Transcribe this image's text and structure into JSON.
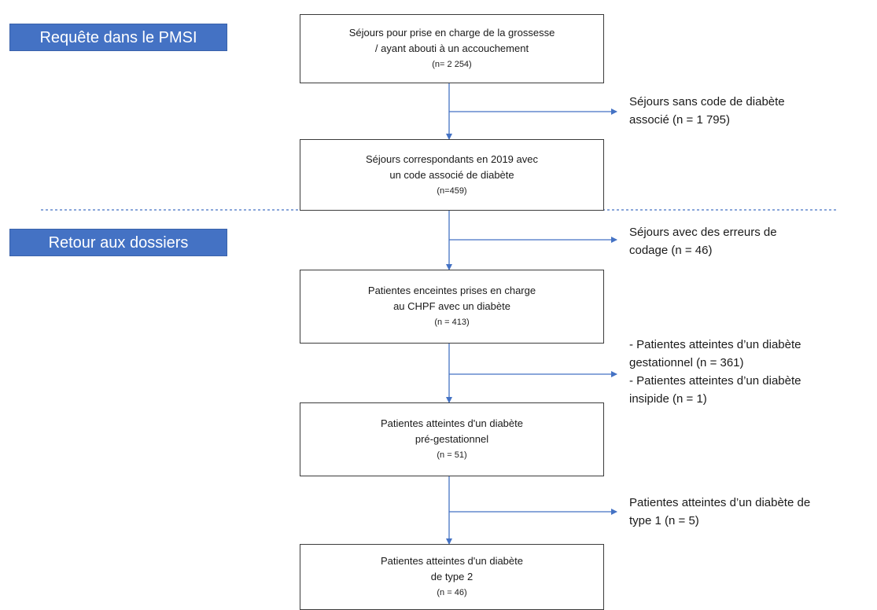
{
  "phases": {
    "query": "Requête dans le PMSI",
    "records": "Retour aux dossiers"
  },
  "boxes": [
    {
      "line1": "Séjours pour prise en charge de la grossesse",
      "line2": "/ ayant abouti à un accouchement",
      "count": "(n= 2 254)"
    },
    {
      "line1": "Séjours correspondants en 2019 avec",
      "line2": "un code associé de diabète",
      "count": "(n=459)"
    },
    {
      "line1": "Patientes enceintes prises en charge",
      "line2": "au CHPF avec un diabète",
      "count": "(n = 413)"
    },
    {
      "line1": "Patientes atteintes d'un diabète",
      "line2": "pré-gestationnel",
      "count": "(n = 51)"
    },
    {
      "line1": "Patientes atteintes d'un diabète",
      "line2": "de type 2",
      "count": "(n = 46)"
    }
  ],
  "exclusions": [
    {
      "lines": [
        "Séjours sans code de diabète",
        "associé (n = 1 795)"
      ]
    },
    {
      "lines": [
        "Séjours avec des erreurs de",
        "codage (n = 46)"
      ]
    },
    {
      "lines": [
        "- Patientes atteintes d’un diabète",
        "gestationnel (n = 361)",
        "- Patientes atteintes d’un diabète",
        "insipide (n = 1)"
      ]
    },
    {
      "lines": [
        "Patientes atteintes d’un diabète de",
        "type 1 (n = 5)"
      ]
    }
  ],
  "colors": {
    "phase_fill": "#4472C4",
    "connector": "#4472C4",
    "separator": "#4472C4",
    "box_border": "#3b3b3b"
  }
}
